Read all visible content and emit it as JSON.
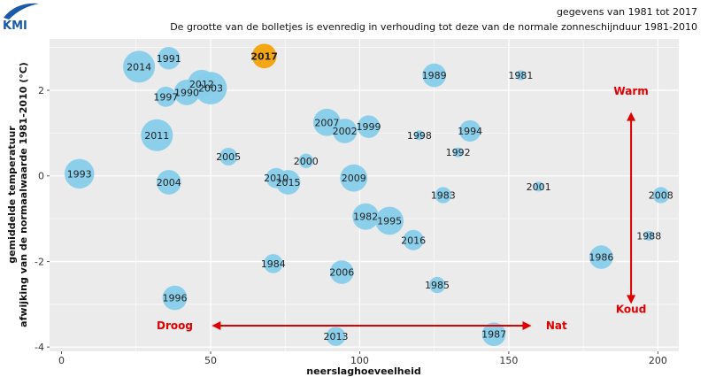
{
  "logo": {
    "text": "KMI",
    "brand_color": "#1a5aa8"
  },
  "header": {
    "line1": "gegevens van 1981 tot 2017",
    "line2": "De grootte van de bolletjes is evenredig in verhouding tot deze van de normale zonneschijnduur 1981-2010"
  },
  "axes": {
    "ylabel_line1": "gemiddelde temperatuur",
    "ylabel_line2": "afwijking van de normaalwaarde 1981-2010 (°C)",
    "xlabel": "neerslaghoeveelheid"
  },
  "annotations": {
    "warm": "Warm",
    "koud": "Koud",
    "droog": "Droog",
    "nat": "Nat",
    "color": "#e00000"
  },
  "colors": {
    "bubble": "#87ceeb",
    "highlight": "#f5a20a",
    "highlight_label": "#d00000",
    "grid": "#ffffff",
    "panel": "#ebebeb"
  },
  "chart_data": {
    "type": "scatter",
    "xlabel": "neerslaghoeveelheid",
    "ylabel": "gemiddelde temperatuur afwijking van de normaalwaarde 1981-2010 (°C)",
    "xlim": [
      -4,
      207
    ],
    "ylim": [
      -4.1,
      3.2
    ],
    "xticks": [
      0,
      50,
      100,
      150,
      200
    ],
    "yticks": [
      -4,
      -2,
      0,
      2
    ],
    "grid": true,
    "size_encoding": "relative sunshine duration (bubble area)",
    "points": [
      {
        "label": "2017",
        "x": 68,
        "y": 2.8,
        "size": 0.55,
        "highlight": true
      },
      {
        "label": "2014",
        "x": 26,
        "y": 2.55,
        "size": 1.0
      },
      {
        "label": "1991",
        "x": 36,
        "y": 2.75,
        "size": 0.45
      },
      {
        "label": "1989",
        "x": 125,
        "y": 2.35,
        "size": 0.5
      },
      {
        "label": "1981",
        "x": 154,
        "y": 2.35,
        "size": 0.05
      },
      {
        "label": "2012",
        "x": 47,
        "y": 2.15,
        "size": 0.75
      },
      {
        "label": "2003",
        "x": 50,
        "y": 2.05,
        "size": 1.05
      },
      {
        "label": "1990",
        "x": 42,
        "y": 1.95,
        "size": 0.6
      },
      {
        "label": "1997",
        "x": 35,
        "y": 1.85,
        "size": 0.35
      },
      {
        "label": "2007",
        "x": 89,
        "y": 1.25,
        "size": 0.7
      },
      {
        "label": "1999",
        "x": 103,
        "y": 1.15,
        "size": 0.45
      },
      {
        "label": "2002",
        "x": 95,
        "y": 1.05,
        "size": 0.55
      },
      {
        "label": "1994",
        "x": 137,
        "y": 1.05,
        "size": 0.4
      },
      {
        "label": "1998",
        "x": 120,
        "y": 0.95,
        "size": 0.05
      },
      {
        "label": "2011",
        "x": 32,
        "y": 0.95,
        "size": 1.0
      },
      {
        "label": "1992",
        "x": 133,
        "y": 0.55,
        "size": 0.05
      },
      {
        "label": "2005",
        "x": 56,
        "y": 0.45,
        "size": 0.25
      },
      {
        "label": "2000",
        "x": 82,
        "y": 0.35,
        "size": 0.15
      },
      {
        "label": "1993",
        "x": 6,
        "y": 0.05,
        "size": 0.85
      },
      {
        "label": "2009",
        "x": 98,
        "y": -0.05,
        "size": 0.7
      },
      {
        "label": "2010",
        "x": 72,
        "y": -0.05,
        "size": 0.35
      },
      {
        "label": "2004",
        "x": 36,
        "y": -0.15,
        "size": 0.55
      },
      {
        "label": "2015",
        "x": 76,
        "y": -0.15,
        "size": 0.55
      },
      {
        "label": "2001",
        "x": 160,
        "y": -0.25,
        "size": 0.05
      },
      {
        "label": "1983",
        "x": 128,
        "y": -0.45,
        "size": 0.2
      },
      {
        "label": "2008",
        "x": 201,
        "y": -0.45,
        "size": 0.2
      },
      {
        "label": "1982",
        "x": 102,
        "y": -0.95,
        "size": 0.65
      },
      {
        "label": "1995",
        "x": 110,
        "y": -1.05,
        "size": 0.75
      },
      {
        "label": "1988",
        "x": 197,
        "y": -1.4,
        "size": 0.05
      },
      {
        "label": "2016",
        "x": 118,
        "y": -1.5,
        "size": 0.35
      },
      {
        "label": "1986",
        "x": 181,
        "y": -1.9,
        "size": 0.5
      },
      {
        "label": "1984",
        "x": 71,
        "y": -2.05,
        "size": 0.3
      },
      {
        "label": "2006",
        "x": 94,
        "y": -2.25,
        "size": 0.5
      },
      {
        "label": "1985",
        "x": 126,
        "y": -2.55,
        "size": 0.2
      },
      {
        "label": "1996",
        "x": 38,
        "y": -2.85,
        "size": 0.55
      },
      {
        "label": "1987",
        "x": 145,
        "y": -3.7,
        "size": 0.5
      },
      {
        "label": "2013",
        "x": 92,
        "y": -3.75,
        "size": 0.3
      }
    ]
  }
}
